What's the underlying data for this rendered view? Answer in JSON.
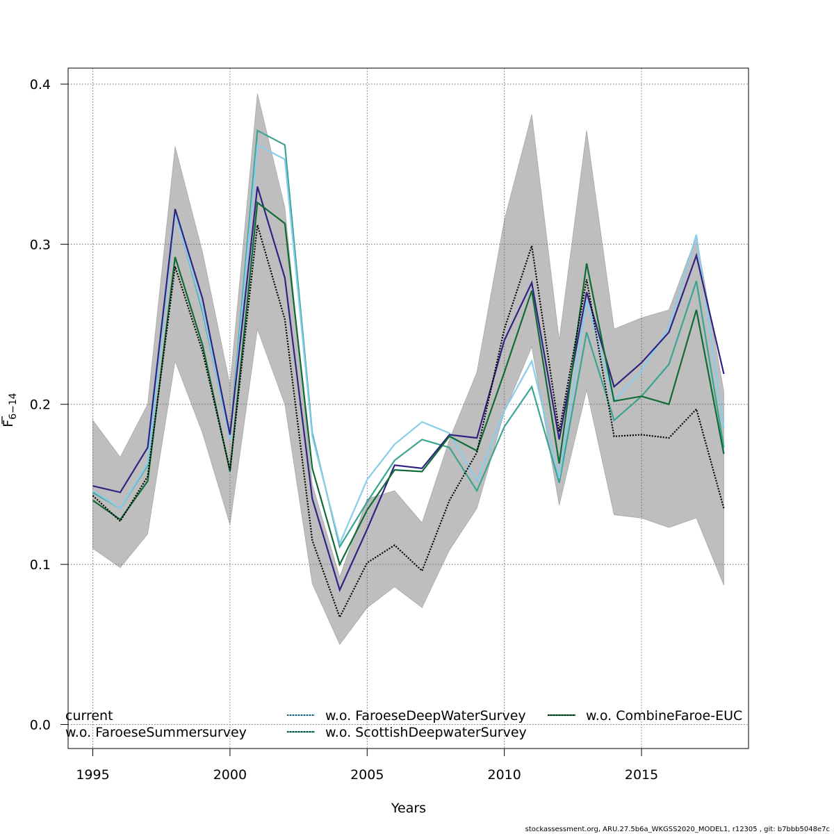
{
  "footer": "stockassessment.org, ARU.27.5b6a_WKGSS2020_MODEL1, r12305 , git: b7bbb5048e7c",
  "chart_data": {
    "type": "line",
    "xlabel": "Years",
    "ylabel_main": "F",
    "ylabel_sub": "6−14",
    "xlim": [
      1994.1,
      2018.9
    ],
    "ylim": [
      -0.015,
      0.41
    ],
    "xticks": [
      1995,
      2000,
      2005,
      2010,
      2015
    ],
    "yticks": [
      0.0,
      0.1,
      0.2,
      0.3,
      0.4
    ],
    "xtick_labels": [
      "1995",
      "2000",
      "2005",
      "2010",
      "2015"
    ],
    "ytick_labels": [
      "0.0",
      "0.1",
      "0.2",
      "0.3",
      "0.4"
    ],
    "grid": true,
    "x": [
      1995,
      1996,
      1997,
      1998,
      1999,
      2000,
      2001,
      2002,
      2003,
      2004,
      2005,
      2006,
      2007,
      2008,
      2009,
      2010,
      2011,
      2012,
      2013,
      2014,
      2015,
      2016,
      2017,
      2018
    ],
    "band": {
      "color": "#bebebe",
      "upper": [
        0.19,
        0.167,
        0.2,
        0.361,
        0.295,
        0.212,
        0.394,
        0.323,
        0.15,
        0.092,
        0.141,
        0.146,
        0.126,
        0.178,
        0.22,
        0.315,
        0.381,
        0.24,
        0.371,
        0.247,
        0.254,
        0.259,
        0.305,
        0.208
      ],
      "lower": [
        0.11,
        0.098,
        0.119,
        0.227,
        0.182,
        0.125,
        0.247,
        0.2,
        0.088,
        0.05,
        0.073,
        0.086,
        0.073,
        0.109,
        0.135,
        0.195,
        0.236,
        0.137,
        0.209,
        0.131,
        0.129,
        0.123,
        0.129,
        0.087
      ]
    },
    "series": [
      {
        "name": "current",
        "color": "#000000",
        "dashed": true,
        "values": [
          0.143,
          0.127,
          0.155,
          0.286,
          0.233,
          0.159,
          0.312,
          0.253,
          0.115,
          0.067,
          0.101,
          0.112,
          0.096,
          0.14,
          0.17,
          0.247,
          0.299,
          0.183,
          0.278,
          0.18,
          0.181,
          0.179,
          0.197,
          0.135
        ]
      },
      {
        "name": "w.o. FaroeseSummersurvey",
        "color": "#2e2383",
        "dashed": false,
        "values": [
          0.149,
          0.145,
          0.173,
          0.322,
          0.266,
          0.181,
          0.336,
          0.279,
          0.141,
          0.084,
          0.122,
          0.162,
          0.16,
          0.181,
          0.179,
          0.24,
          0.276,
          0.178,
          0.27,
          0.211,
          0.226,
          0.245,
          0.293,
          0.219
        ]
      },
      {
        "name": "w.o. FaroeseDeepWaterSurvey",
        "color": "#87cdeb",
        "dashed": false,
        "values": [
          0.146,
          0.135,
          0.163,
          0.32,
          0.26,
          0.178,
          0.362,
          0.353,
          0.18,
          0.113,
          0.153,
          0.175,
          0.189,
          0.182,
          0.152,
          0.196,
          0.227,
          0.154,
          0.265,
          0.202,
          0.221,
          0.248,
          0.306,
          0.185
        ]
      },
      {
        "name": "w.o. ScottishDeepwaterSurvey",
        "color": "#3aa492",
        "dashed": false,
        "values": [
          0.145,
          0.135,
          0.162,
          0.321,
          0.258,
          0.179,
          0.371,
          0.362,
          0.182,
          0.111,
          0.139,
          0.165,
          0.178,
          0.173,
          0.146,
          0.186,
          0.211,
          0.151,
          0.245,
          0.19,
          0.205,
          0.225,
          0.277,
          0.173
        ]
      },
      {
        "name": "w.o. CombineFaroe-EUC",
        "color": "#0f6b36",
        "dashed": false,
        "values": [
          0.14,
          0.128,
          0.152,
          0.292,
          0.237,
          0.158,
          0.326,
          0.313,
          0.16,
          0.1,
          0.134,
          0.159,
          0.158,
          0.18,
          0.171,
          0.22,
          0.271,
          0.163,
          0.288,
          0.202,
          0.205,
          0.2,
          0.259,
          0.169
        ]
      }
    ],
    "legend_placement": "bottom"
  }
}
